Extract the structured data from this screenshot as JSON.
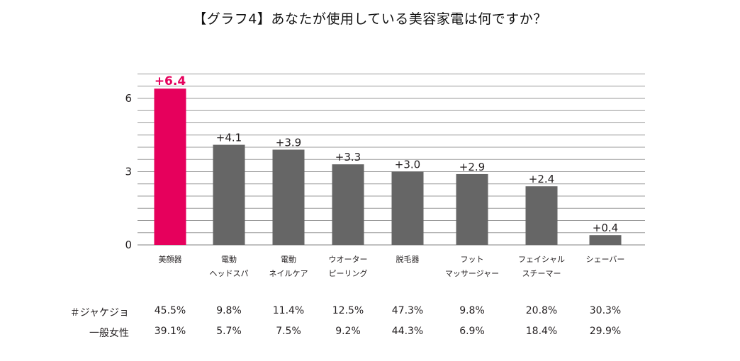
{
  "title": "【グラフ4】あなたが使用している美容家電は何ですか？",
  "chart_data": {
    "type": "bar",
    "categories": [
      [
        "美顔器"
      ],
      [
        "電動",
        "ヘッドスパ"
      ],
      [
        "電動",
        "ネイルケア"
      ],
      [
        "ウオーター",
        "ピーリング"
      ],
      [
        "脱毛器"
      ],
      [
        "フット",
        "マッサージャー"
      ],
      [
        "フェイシャル",
        "スチーマー"
      ],
      [
        "シェーバー"
      ]
    ],
    "values": [
      6.4,
      4.1,
      3.9,
      3.3,
      3.0,
      2.9,
      2.4,
      0.4
    ],
    "value_labels": [
      "+6.4",
      "+4.1",
      "+3.9",
      "+3.3",
      "+3.0",
      "+2.9",
      "+2.4",
      "+0.4"
    ],
    "highlight_index": 0,
    "colors": {
      "highlight": "#e6005c",
      "bar": "#666666",
      "grid": "#9a9a9a"
    },
    "ylim": [
      0,
      7
    ],
    "yticks": [
      0,
      3,
      6
    ],
    "gridlines": [
      0,
      0.5,
      1,
      1.5,
      2,
      2.5,
      3,
      3.5,
      4,
      4.5,
      5,
      5.5,
      6,
      6.5,
      7
    ],
    "grid": true
  },
  "table": {
    "rows": [
      {
        "label": "＃ジャケジョ",
        "values": [
          "45.5%",
          "9.8%",
          "11.4%",
          "12.5%",
          "47.3%",
          "9.8%",
          "20.8%",
          "30.3%"
        ]
      },
      {
        "label": "一般女性",
        "values": [
          "39.1%",
          "5.7%",
          "7.5%",
          "9.2%",
          "44.3%",
          "6.9%",
          "18.4%",
          "29.9%"
        ]
      }
    ]
  }
}
